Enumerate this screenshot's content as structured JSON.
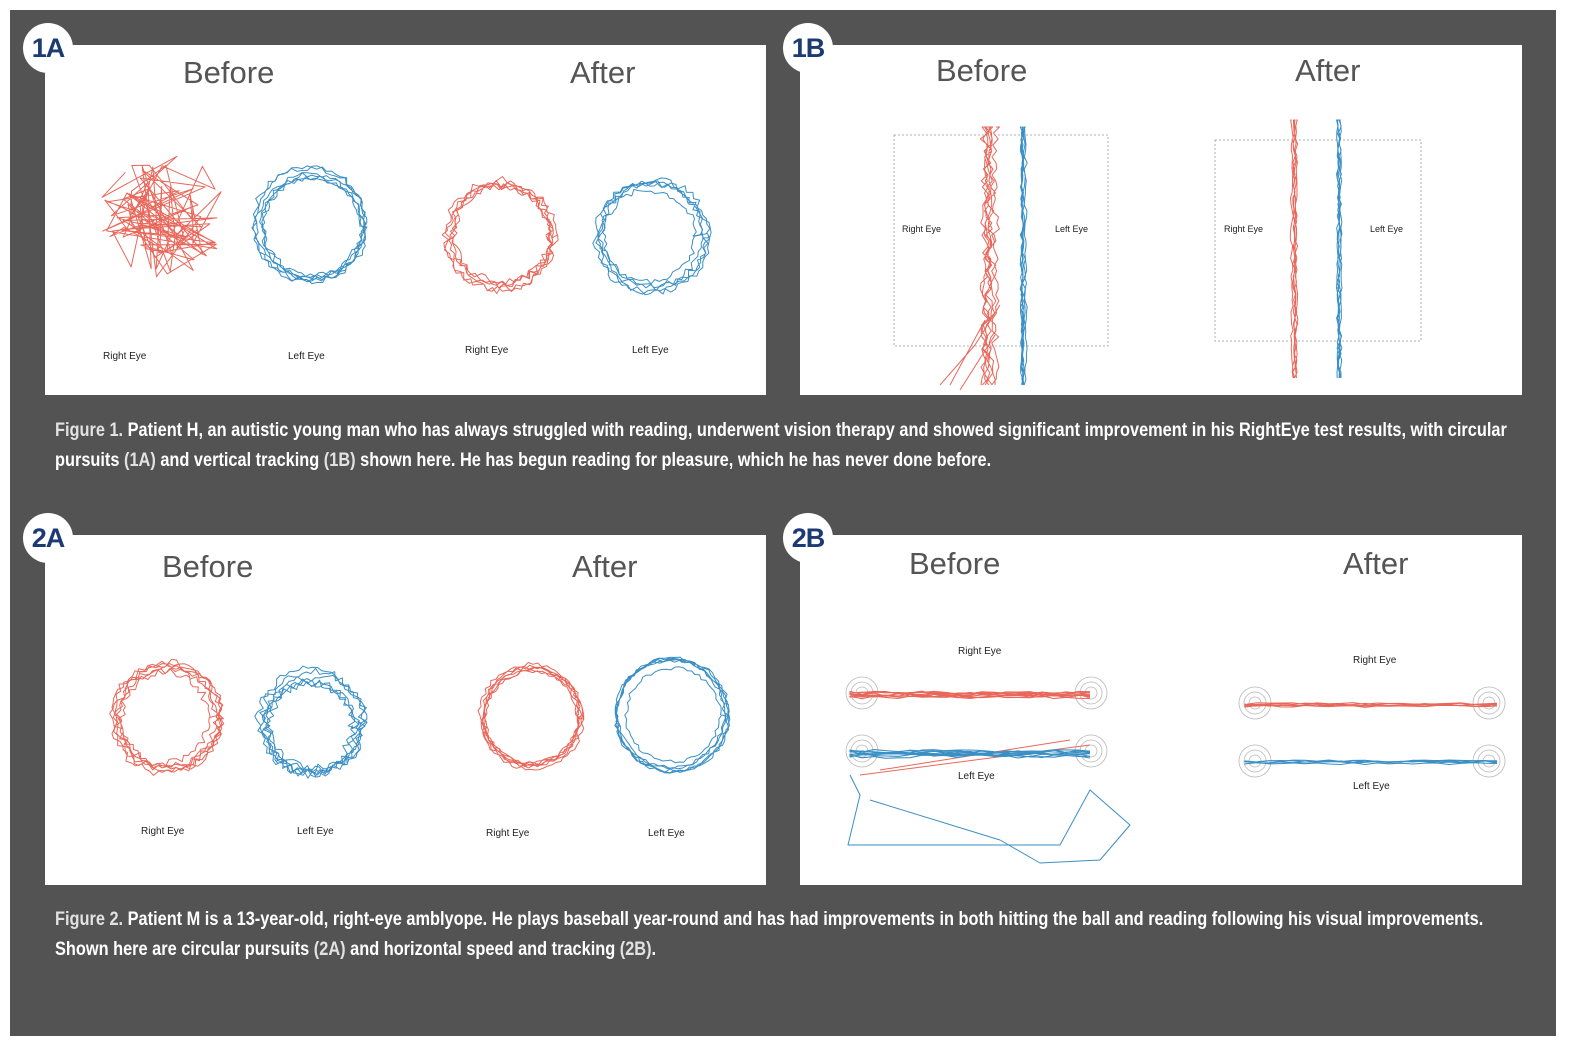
{
  "panels": {
    "p1a": {
      "badge": "1A",
      "before": "Before",
      "after": "After",
      "labels": {
        "before_right": "Right Eye",
        "before_left": "Left Eye",
        "after_right": "Right Eye",
        "after_left": "Left Eye"
      }
    },
    "p1b": {
      "badge": "1B",
      "before": "Before",
      "after": "After",
      "labels": {
        "before_right": "Right Eye",
        "before_left": "Left Eye",
        "after_right": "Right Eye",
        "after_left": "Left Eye"
      }
    },
    "p2a": {
      "badge": "2A",
      "before": "Before",
      "after": "After",
      "labels": {
        "before_right": "Right Eye",
        "before_left": "Left Eye",
        "after_right": "Right Eye",
        "after_left": "Left Eye"
      }
    },
    "p2b": {
      "badge": "2B",
      "before": "Before",
      "after": "After",
      "labels": {
        "before_right": "Right Eye",
        "before_left": "Left Eye",
        "after_right": "Right Eye",
        "after_left": "Left Eye"
      }
    }
  },
  "captions": {
    "fig1": {
      "label": "Figure 1.",
      "text1": " Patient H, an autistic young man who has always struggled with reading, underwent vision therapy and showed significant improvement in his RightEye test results, with circular pursuits ",
      "ref1": "(1A)",
      "text2": " and vertical tracking ",
      "ref2": "(1B)",
      "text3": " shown here. He has begun reading for pleasure, which he has never done before."
    },
    "fig2": {
      "label": "Figure 2.",
      "text1": " Patient M is a 13-year-old, right-eye amblyope. He plays baseball year-round and has had improvements in both hitting the ball and reading following his visual improvements. Shown here are circular pursuits ",
      "ref1": "(2A)",
      "text2": " and horizontal speed and tracking ",
      "ref2": "(2B)",
      "text3": "."
    }
  },
  "colors": {
    "frame": "#535353",
    "right_eye_trace": "#e8675a",
    "left_eye_trace": "#3a8fc4",
    "badge_text": "#1c3a73",
    "heading_text": "#555555"
  }
}
